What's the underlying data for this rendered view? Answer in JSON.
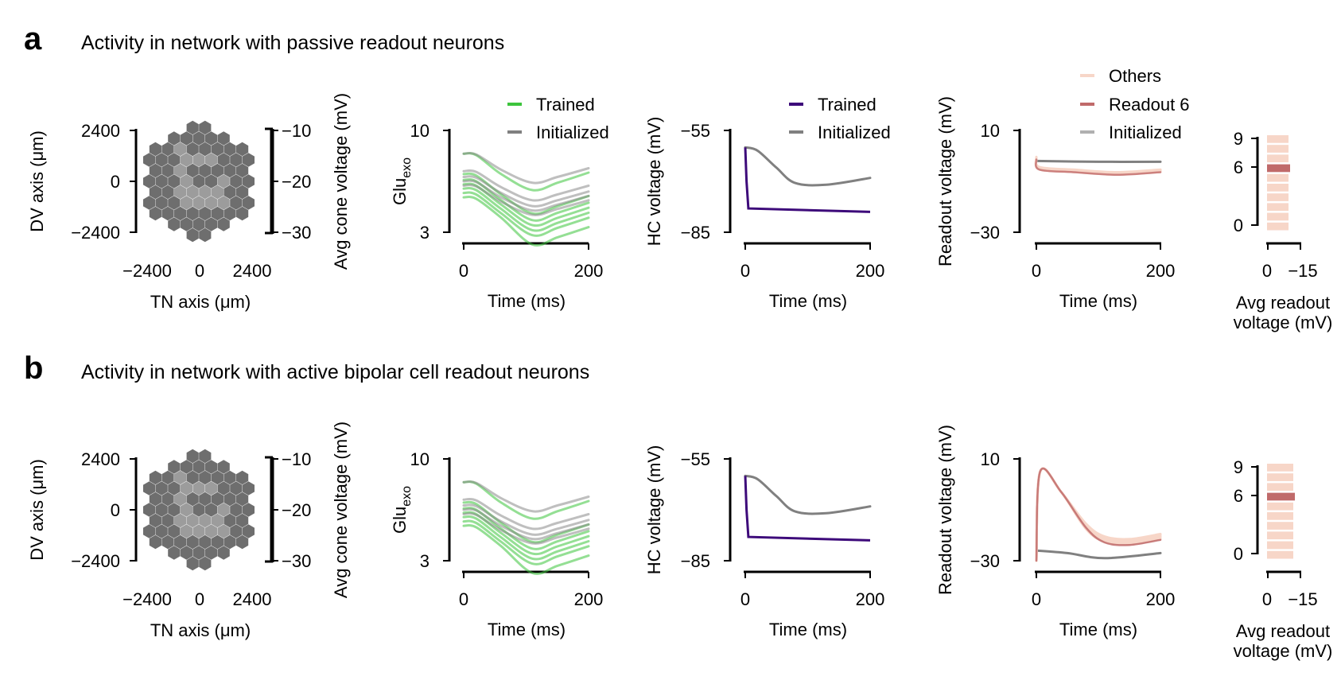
{
  "panels": [
    {
      "letter": "a",
      "title": "Activity in network with passive readout neurons",
      "hex": {
        "xlabel": "TN axis (μm)",
        "ylabel": "DV axis (μm)",
        "xticks": [
          "−2400",
          "0",
          "2400"
        ],
        "yticks": [
          "2400",
          "0",
          "−2400"
        ],
        "colorbar_label": "Avg cone voltage (mV)",
        "colorbar_ticks": [
          "−10",
          "−20",
          "−30"
        ]
      },
      "glu": {
        "ylabel_main": "Glu",
        "ylabel_sub": "exo",
        "xlabel": "Time (ms)",
        "xticks": [
          "0",
          "200"
        ],
        "yticks": [
          "10",
          "3"
        ],
        "legend": [
          "Trained",
          "Initialized"
        ]
      },
      "hc": {
        "ylabel": "HC voltage (mV)",
        "xlabel": "Time (ms)",
        "xticks": [
          "0",
          "200"
        ],
        "yticks": [
          "−55",
          "−85"
        ],
        "legend": [
          "Trained",
          "Initialized"
        ]
      },
      "readout": {
        "ylabel": "Readout voltage (mV)",
        "xlabel": "Time (ms)",
        "xticks": [
          "0",
          "200"
        ],
        "yticks": [
          "10",
          "−30"
        ],
        "legend": [
          "Others",
          "Readout 6",
          "Initialized"
        ]
      },
      "bars": {
        "xlabel_line1": "Avg readout",
        "xlabel_line2": "voltage (mV)",
        "xticks": [
          "0",
          "−15"
        ],
        "yticks": [
          "9",
          "6",
          "0"
        ]
      }
    },
    {
      "letter": "b",
      "title": "Activity in network with active bipolar cell readout neurons",
      "hex": {
        "xlabel": "TN axis (μm)",
        "ylabel": "DV axis (μm)",
        "xticks": [
          "−2400",
          "0",
          "2400"
        ],
        "yticks": [
          "2400",
          "0",
          "−2400"
        ],
        "colorbar_label": "Avg cone voltage (mV)",
        "colorbar_ticks": [
          "−10",
          "−20",
          "−30"
        ]
      },
      "glu": {
        "ylabel_main": "Glu",
        "ylabel_sub": "exo",
        "xlabel": "Time (ms)",
        "xticks": [
          "0",
          "200"
        ],
        "yticks": [
          "10",
          "3"
        ]
      },
      "hc": {
        "ylabel": "HC voltage (mV)",
        "xlabel": "Time (ms)",
        "xticks": [
          "0",
          "200"
        ],
        "yticks": [
          "−55",
          "−85"
        ]
      },
      "readout": {
        "ylabel": "Readout voltage (mV)",
        "xlabel": "Time (ms)",
        "xticks": [
          "0",
          "200"
        ],
        "yticks": [
          "10",
          "−30"
        ]
      },
      "bars": {
        "xlabel_line1": "Avg readout",
        "xlabel_line2": "voltage (mV)",
        "xticks": [
          "0",
          "−15"
        ],
        "yticks": [
          "9",
          "6",
          "0"
        ]
      }
    }
  ],
  "colors": {
    "trained_green": "#3cc43c",
    "initialized_gray": "#808080",
    "hc_trained": "#3d0a7a",
    "readout_others": "#f7d6c8",
    "readout_6": "#c06a6a",
    "readout_init": "#b0b0b0",
    "hex_dark": "#6e6e6e",
    "hex_light": "#9c9c9c"
  },
  "chart_data": [
    {
      "type": "line",
      "xlim": [
        0,
        200
      ],
      "ylim": [
        3,
        10
      ],
      "legend": [
        "Trained",
        "Initialized"
      ],
      "series": [
        {
          "name": "Trained",
          "x": [
            0,
            20,
            60,
            110,
            150,
            200
          ],
          "y": [
            8.4,
            8.3,
            7.0,
            5.9,
            6.4,
            7.1
          ]
        },
        {
          "name": "Initialized",
          "x": [
            0,
            20,
            60,
            110,
            150,
            200
          ],
          "y": [
            8.4,
            8.35,
            7.3,
            6.4,
            6.8,
            7.4
          ]
        }
      ]
    },
    {
      "type": "line",
      "xlim": [
        0,
        200
      ],
      "ylim": [
        -85,
        -55
      ],
      "legend": [
        "Trained",
        "Initialized"
      ],
      "series": [
        {
          "name": "Trained",
          "x": [
            0,
            2,
            5,
            200
          ],
          "y": [
            -60,
            -70,
            -78,
            -79
          ]
        },
        {
          "name": "Initialized",
          "x": [
            0,
            20,
            50,
            80,
            130,
            200
          ],
          "y": [
            -60,
            -61,
            -66,
            -70.5,
            -71,
            -69
          ]
        }
      ]
    },
    {
      "type": "line",
      "xlim": [
        0,
        200
      ],
      "ylim": [
        -30,
        10
      ],
      "legend": [
        "Others",
        "Readout 6",
        "Initialized"
      ],
      "series": [
        {
          "name": "Readout 6",
          "x": [
            0,
            5,
            60,
            130,
            200
          ],
          "y": [
            -1,
            -5,
            -6,
            -7,
            -6
          ]
        },
        {
          "name": "Initialized",
          "x": [
            0,
            100,
            200
          ],
          "y": [
            -2,
            -2.3,
            -2.3
          ]
        }
      ]
    },
    {
      "type": "line",
      "xlim": [
        0,
        200
      ],
      "ylim": [
        -30,
        10
      ],
      "series": [
        {
          "name": "Readout 6",
          "x": [
            0,
            6,
            40,
            80,
            110,
            150,
            200
          ],
          "y": [
            -30,
            5,
            -3,
            -17,
            -22,
            -23,
            -21
          ]
        },
        {
          "name": "Initialized",
          "x": [
            0,
            50,
            110,
            200
          ],
          "y": [
            -26,
            -27,
            -29,
            -27
          ]
        }
      ]
    }
  ]
}
